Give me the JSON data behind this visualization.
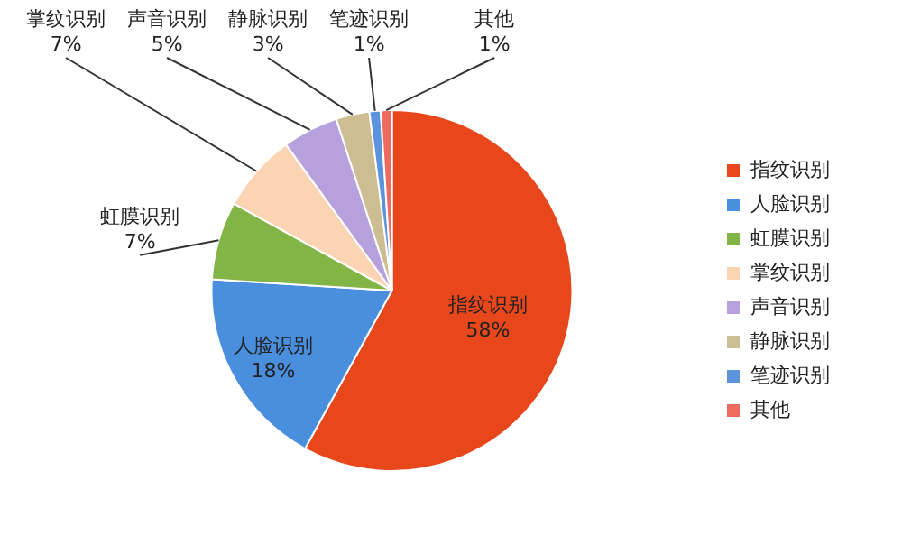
{
  "chart_data": {
    "type": "pie",
    "categories": [
      "指纹识别",
      "人脸识别",
      "虹膜识别",
      "掌纹识别",
      "声音识别",
      "静脉识别",
      "笔迹识别",
      "其他"
    ],
    "values": [
      58,
      18,
      7,
      7,
      5,
      3,
      1,
      1
    ],
    "value_labels": [
      "58%",
      "18%",
      "7%",
      "7%",
      "5%",
      "3%",
      "1%",
      "1%"
    ],
    "colors": [
      "#e8471c",
      "#4a8ede",
      "#82b545",
      "#fbd5b3",
      "#b6a1dc",
      "#cdbd93",
      "#5b93dd",
      "#ec6a5e"
    ],
    "legend": "right"
  }
}
